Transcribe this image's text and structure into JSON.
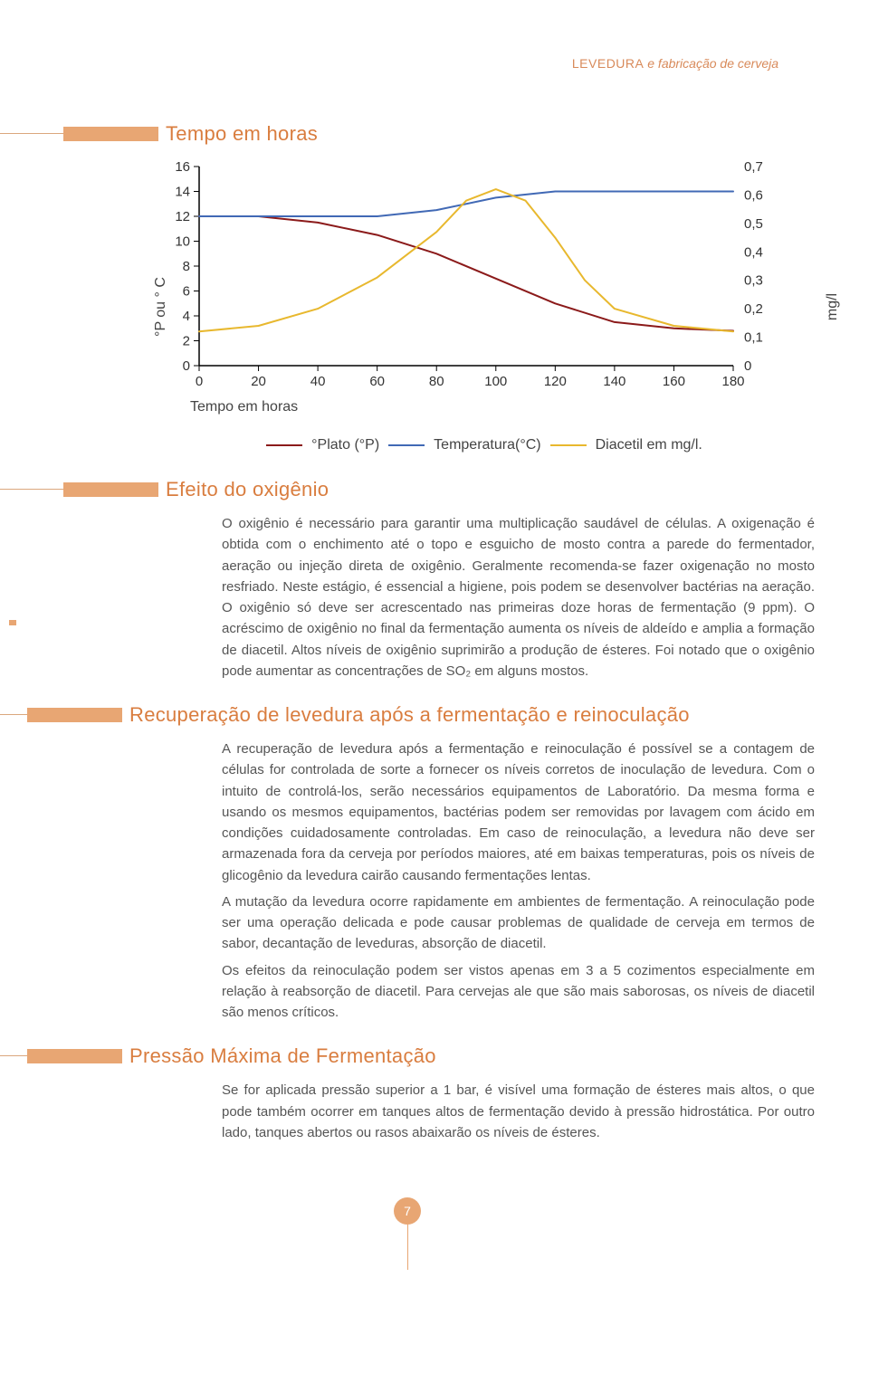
{
  "runningHead": {
    "caps": "LEVEDURA",
    "rest": " e fabricação de cerveja"
  },
  "sectionA": {
    "lineW": 70,
    "rectW": 105,
    "title": "Tempo em horas"
  },
  "chart": {
    "yLeftLabel": "°P ou ° C",
    "yRightLabel": "mg/l",
    "xLabel": "Tempo em horas",
    "yLeftTicks": [
      "16",
      "14",
      "12",
      "10",
      "8",
      "6",
      "4",
      "2",
      "0"
    ],
    "yRightTicks": [
      "0,7",
      "0,6",
      "0,5",
      "0,4",
      "0,3",
      "0,2",
      "0,1",
      "0"
    ],
    "xTicks": [
      "0",
      "20",
      "40",
      "60",
      "80",
      "100",
      "120",
      "140",
      "160",
      "180"
    ],
    "series": {
      "plato": {
        "color": "#8b1a1a",
        "points": [
          [
            0,
            12
          ],
          [
            20,
            12
          ],
          [
            40,
            11.5
          ],
          [
            60,
            10.5
          ],
          [
            80,
            9
          ],
          [
            100,
            7
          ],
          [
            120,
            5
          ],
          [
            140,
            3.5
          ],
          [
            160,
            3
          ],
          [
            180,
            2.8
          ]
        ]
      },
      "temp": {
        "color": "#4169b5",
        "points": [
          [
            0,
            12
          ],
          [
            20,
            12
          ],
          [
            40,
            12
          ],
          [
            60,
            12
          ],
          [
            80,
            12.5
          ],
          [
            100,
            13.5
          ],
          [
            120,
            14
          ],
          [
            140,
            14
          ],
          [
            160,
            14
          ],
          [
            180,
            14
          ]
        ]
      },
      "diacetil": {
        "color": "#e8b82e",
        "points": [
          [
            0,
            0.12
          ],
          [
            20,
            0.14
          ],
          [
            40,
            0.2
          ],
          [
            60,
            0.31
          ],
          [
            80,
            0.47
          ],
          [
            90,
            0.58
          ],
          [
            100,
            0.62
          ],
          [
            110,
            0.58
          ],
          [
            120,
            0.45
          ],
          [
            130,
            0.3
          ],
          [
            140,
            0.2
          ],
          [
            160,
            0.14
          ],
          [
            180,
            0.12
          ]
        ]
      }
    },
    "legend": {
      "plato": "°Plato (°P)",
      "temp": "Temperatura(°C)",
      "diacetil": "Diacetil em mg/l."
    }
  },
  "sectionB": {
    "lineW": 70,
    "rectW": 105,
    "title": "Efeito do oxigênio",
    "body": "O oxigênio é necessário para garantir uma multiplicação saudável de células. A oxigenação é obtida com o enchimento até o topo e esguicho de mosto contra a parede do fermentador, aeração ou injeção direta de oxigênio. Geralmente recomenda-se fazer oxigenação no mosto resfriado. Neste estágio, é essencial a higiene, pois podem se desenvolver bactérias na aeração. O oxigênio só deve ser acrescentado nas primeiras doze horas de fermentação (9 ppm). O acréscimo de oxigênio no final da fermentação aumenta os níveis de aldeído e amplia a formação de diacetil. Altos níveis de oxigênio suprimirão a produção de ésteres. Foi notado que o oxigênio pode aumentar as concentrações de SO₂ em alguns mostos."
  },
  "sectionC": {
    "lineW": 30,
    "rectW": 105,
    "title": "Recuperação de levedura após a fermentação e reinoculação",
    "p1": "A recuperação de levedura após a fermentação e reinoculação é possível se a contagem de células for controlada de sorte a fornecer os níveis corretos de inoculação de levedura. Com o intuito de controlá-los, serão necessários equipamentos de Laboratório. Da mesma forma e usando os mesmos equipamentos, bactérias podem ser removidas por lavagem com ácido em condições cuidadosamente controladas. Em caso de reinoculação, a levedura não deve ser armazenada fora da cerveja por períodos maiores, até em baixas temperaturas, pois os níveis de glicogênio da levedura cairão causando fermentações lentas.",
    "p2": "A mutação da levedura ocorre rapidamente em ambientes de fermentação. A reinoculação pode ser uma operação delicada e pode causar problemas de qualidade de cerveja em termos de sabor, decantação de leveduras, absorção de diacetil.",
    "p3": "Os efeitos da reinoculação podem ser vistos apenas em 3 a 5 cozimentos especialmente em relação à reabsorção de diacetil. Para cervejas ale que são mais saborosas, os níveis de diacetil são menos críticos."
  },
  "sectionD": {
    "lineW": 30,
    "rectW": 105,
    "title": "Pressão Máxima de Fermentação",
    "body": "Se for aplicada pressão superior a 1 bar, é visível uma formação de ésteres mais altos, o que pode também ocorrer em tanques altos de fermentação devido à pressão hidrostática. Por outro lado, tanques abertos ou rasos abaixarão os níveis de ésteres."
  },
  "pageNum": "7"
}
